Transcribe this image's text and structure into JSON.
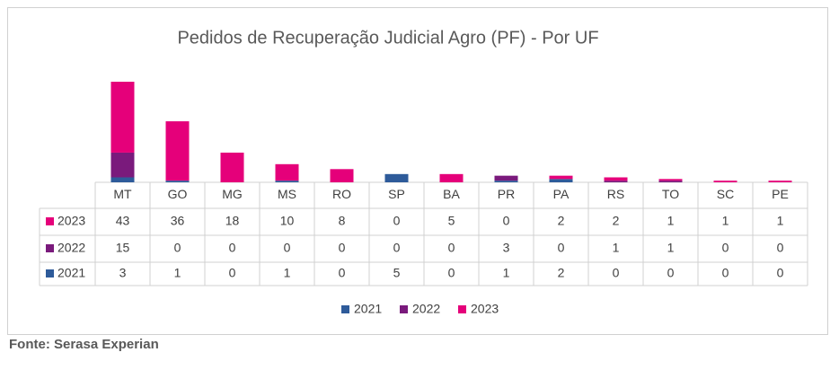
{
  "chart_data": {
    "type": "bar",
    "stacked": true,
    "title": "Pedidos de Recuperação Judicial Agro (PF) - Por UF",
    "categories": [
      "MT",
      "GO",
      "MG",
      "MS",
      "RO",
      "SP",
      "BA",
      "PR",
      "PA",
      "RS",
      "TO",
      "SC",
      "PE"
    ],
    "series": [
      {
        "name": "2021",
        "color": "#2e5b9a",
        "values": [
          3,
          1,
          0,
          1,
          0,
          5,
          0,
          1,
          2,
          0,
          0,
          0,
          0
        ]
      },
      {
        "name": "2022",
        "color": "#7a1a7c",
        "values": [
          15,
          0,
          0,
          0,
          0,
          0,
          0,
          3,
          0,
          1,
          1,
          0,
          0
        ]
      },
      {
        "name": "2023",
        "color": "#e5007a",
        "values": [
          43,
          36,
          18,
          10,
          8,
          0,
          5,
          0,
          2,
          2,
          1,
          1,
          1
        ]
      }
    ],
    "source": "Fonte: Serasa Experian"
  }
}
